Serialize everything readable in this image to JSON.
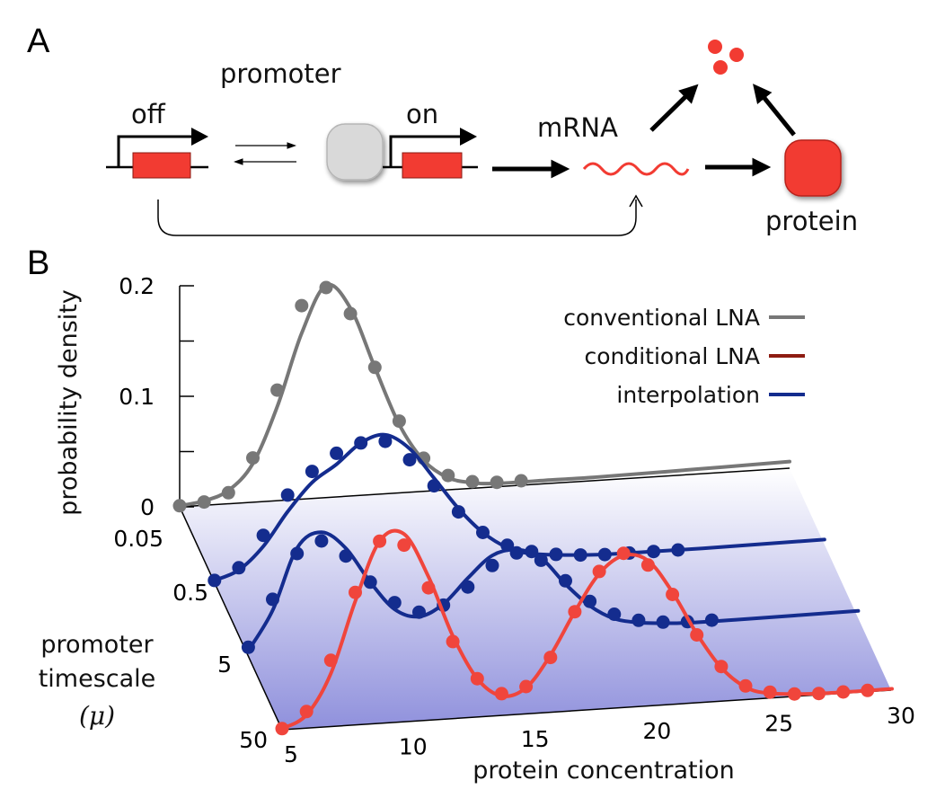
{
  "panel_a": {
    "panel_label": "A",
    "labels": {
      "promoter": "promoter",
      "off": "off",
      "on": "on",
      "mrna": "mRNA",
      "protein": "protein"
    },
    "colors": {
      "gene": "#f23b32",
      "repressor": "#d8d8d8",
      "arrow": "#000000"
    }
  },
  "panel_b": {
    "panel_label": "B",
    "colors": {
      "conventional": "#777777",
      "conditional": "#f0453c",
      "interpolation": "#142c8e",
      "conditional_legend": "#8e1c12"
    }
  },
  "chart_data": {
    "type": "line",
    "ylabel": "probability density",
    "xlabel": "protein concentration",
    "zlabel_line1": "promoter",
    "zlabel_line2": "timescale",
    "zlabel_symbol": "(μ)",
    "x_ticks": [
      "5",
      "10",
      "15",
      "20",
      "25",
      "30"
    ],
    "y_ticks": [
      "0",
      "0.1",
      "0.2"
    ],
    "z_ticks": [
      "0.05",
      "0.5",
      "5",
      "50"
    ],
    "xlim": [
      5,
      30
    ],
    "ylim": [
      0,
      0.2
    ],
    "legend": [
      {
        "label": "conventional LNA",
        "series": "conventional"
      },
      {
        "label": "conditional LNA",
        "series": "conditional"
      },
      {
        "label": "interpolation",
        "series": "interpolation"
      }
    ],
    "series": [
      {
        "z": "0.05",
        "style": "conventional",
        "line_x": [
          5,
          6,
          7,
          8,
          9,
          10,
          11,
          12,
          13,
          14,
          15,
          16,
          17,
          18,
          20,
          22,
          25,
          30
        ],
        "line_y": [
          0.001,
          0.004,
          0.012,
          0.035,
          0.085,
          0.15,
          0.192,
          0.17,
          0.115,
          0.062,
          0.028,
          0.011,
          0.005,
          0.003,
          0.003,
          0.003,
          0.004,
          0.006
        ],
        "points_x": [
          5,
          6,
          7,
          8,
          9,
          10,
          11,
          12,
          13,
          14,
          15,
          16,
          17,
          18,
          19
        ],
        "points_y": [
          0.001,
          0.003,
          0.01,
          0.04,
          0.1,
          0.175,
          0.19,
          0.165,
          0.115,
          0.065,
          0.03,
          0.013,
          0.006,
          0.004,
          0.004
        ]
      },
      {
        "z": "0.5",
        "style": "interpolation",
        "line_x": [
          5,
          6,
          7,
          8,
          9,
          10,
          11,
          12,
          13,
          14,
          15,
          16,
          17,
          18,
          20,
          22,
          25,
          30
        ],
        "line_y": [
          0.002,
          0.01,
          0.03,
          0.06,
          0.085,
          0.1,
          0.118,
          0.124,
          0.11,
          0.082,
          0.053,
          0.03,
          0.015,
          0.008,
          0.004,
          0.003,
          0.003,
          0.004
        ],
        "points_x": [
          5,
          6,
          7,
          8,
          9,
          10,
          11,
          12,
          13,
          14,
          15,
          16,
          17,
          18,
          19,
          20,
          21,
          22,
          23,
          24
        ],
        "points_y": [
          0.002,
          0.012,
          0.04,
          0.075,
          0.095,
          0.11,
          0.118,
          0.118,
          0.1,
          0.075,
          0.05,
          0.03,
          0.017,
          0.01,
          0.006,
          0.004,
          0.003,
          0.003,
          0.003,
          0.003
        ]
      },
      {
        "z": "5",
        "style": "interpolation",
        "line_x": [
          5,
          6,
          7,
          8,
          9,
          10,
          11,
          12,
          13,
          14,
          15,
          16,
          17,
          18,
          19,
          20,
          21,
          22,
          23,
          25,
          30
        ],
        "line_y": [
          0.005,
          0.04,
          0.095,
          0.108,
          0.092,
          0.06,
          0.034,
          0.026,
          0.036,
          0.058,
          0.077,
          0.081,
          0.072,
          0.047,
          0.026,
          0.013,
          0.008,
          0.006,
          0.005,
          0.005,
          0.006
        ],
        "points_x": [
          5,
          6,
          7,
          8,
          9,
          10,
          11,
          12,
          13,
          14,
          15,
          16,
          17,
          18,
          19,
          20,
          21,
          22,
          23,
          24
        ],
        "points_y": [
          0.008,
          0.05,
          0.09,
          0.1,
          0.085,
          0.06,
          0.04,
          0.03,
          0.035,
          0.05,
          0.068,
          0.078,
          0.07,
          0.05,
          0.03,
          0.017,
          0.01,
          0.007,
          0.006,
          0.006
        ]
      },
      {
        "z": "50",
        "style": "conditional",
        "line_x": [
          5,
          6,
          7,
          8,
          9,
          10,
          11,
          12,
          13,
          14,
          15,
          16,
          17,
          18,
          19,
          20,
          21,
          22,
          23,
          24,
          25,
          27,
          30
        ],
        "line_y": [
          0.001,
          0.012,
          0.048,
          0.112,
          0.165,
          0.17,
          0.13,
          0.075,
          0.035,
          0.018,
          0.024,
          0.052,
          0.09,
          0.123,
          0.138,
          0.132,
          0.102,
          0.063,
          0.031,
          0.012,
          0.005,
          0.002,
          0.002
        ],
        "points_x": [
          5,
          6,
          7,
          8,
          9,
          10,
          11,
          12,
          13,
          14,
          15,
          16,
          17,
          18,
          19,
          20,
          21,
          22,
          23,
          24,
          25,
          26,
          27,
          28,
          29
        ],
        "points_y": [
          0.001,
          0.015,
          0.06,
          0.12,
          0.165,
          0.16,
          0.12,
          0.07,
          0.035,
          0.02,
          0.025,
          0.05,
          0.09,
          0.125,
          0.14,
          0.128,
          0.1,
          0.062,
          0.032,
          0.013,
          0.006,
          0.003,
          0.002,
          0.002,
          0.002
        ]
      }
    ]
  }
}
